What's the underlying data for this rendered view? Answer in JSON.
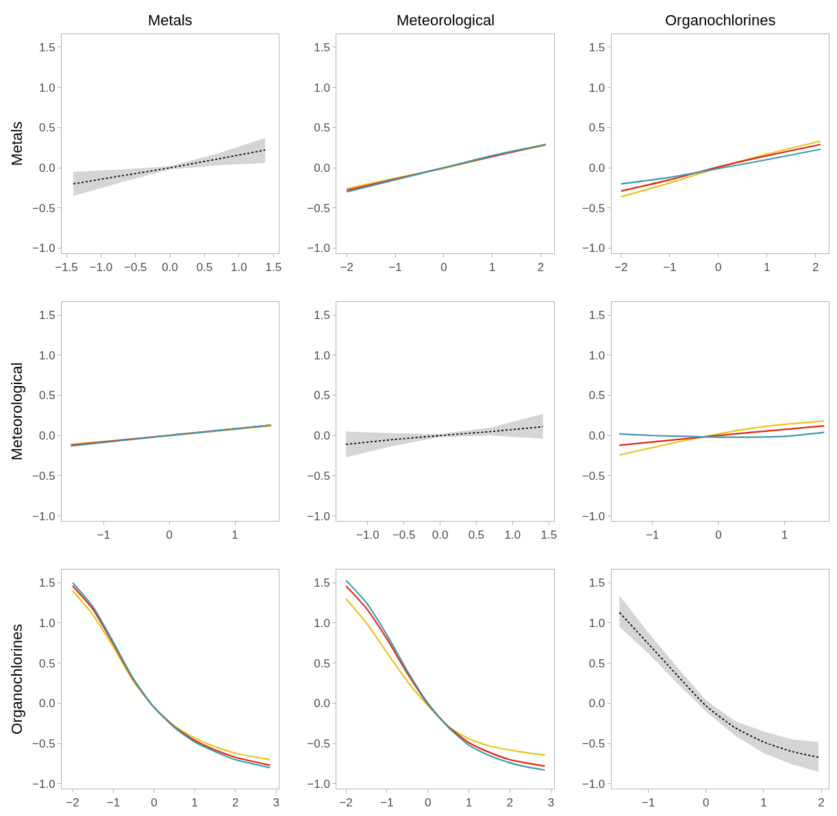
{
  "chart_data": [
    {
      "type": "line",
      "title": "Metals",
      "ylabel": "Metals",
      "xlim": [
        -1.57,
        1.58
      ],
      "xticks": [
        {
          "value": -1.5,
          "label": "−1.5"
        },
        {
          "value": -1,
          "label": "−1.0"
        },
        {
          "value": -0.5,
          "label": "−0.5"
        },
        {
          "value": 0,
          "label": "0.0"
        },
        {
          "value": 0.5,
          "label": "0.5"
        },
        {
          "value": 1,
          "label": "1.0"
        },
        {
          "value": 1.5,
          "label": "1.5"
        }
      ],
      "ylim": [
        -1.06,
        1.66
      ],
      "yticks": [
        {
          "value": -1,
          "label": "−1.0"
        },
        {
          "value": -0.5,
          "label": "−0.5"
        },
        {
          "value": 0,
          "label": "0.0"
        },
        {
          "value": 0.5,
          "label": "0.5"
        },
        {
          "value": 1,
          "label": "1.0"
        },
        {
          "value": 1.5,
          "label": "1.5"
        }
      ],
      "series": [
        {
          "color": "#000000",
          "line_style": "dotted",
          "x": [
            -1.4,
            -0.7,
            0,
            0.7,
            1.38
          ],
          "values": [
            -0.2,
            -0.1,
            0,
            0.11,
            0.22
          ],
          "lower": [
            -0.35,
            -0.18,
            -0.02,
            0.03,
            0.06
          ],
          "upper": [
            -0.05,
            -0.02,
            0.02,
            0.18,
            0.37
          ]
        }
      ]
    },
    {
      "type": "line",
      "title": "Meteorological",
      "xlim": [
        -2.21,
        2.27
      ],
      "xticks": [
        {
          "value": -2,
          "label": "−2"
        },
        {
          "value": -1,
          "label": "−1"
        },
        0,
        1,
        2
      ],
      "ylim": [
        -1.06,
        1.66
      ],
      "yticks": [
        {
          "value": -1,
          "label": "−1.0"
        },
        {
          "value": -0.5,
          "label": "−0.5"
        },
        {
          "value": 0,
          "label": "0.0"
        },
        {
          "value": 0.5,
          "label": "0.5"
        },
        {
          "value": 1,
          "label": "1.0"
        },
        {
          "value": 1.5,
          "label": "1.5"
        }
      ],
      "series": [
        {
          "color": "#e8c51e",
          "x": [
            -2,
            -1,
            0,
            1,
            2.1
          ],
          "values": [
            -0.26,
            -0.13,
            -0.01,
            0.14,
            0.28
          ]
        },
        {
          "color": "#e3250f",
          "x": [
            -2,
            -1,
            0,
            1,
            2.1
          ],
          "values": [
            -0.28,
            -0.14,
            0,
            0.14,
            0.29
          ]
        },
        {
          "color": "#3a9ab2",
          "x": [
            -2,
            -1,
            0,
            1,
            2.1
          ],
          "values": [
            -0.3,
            -0.15,
            0,
            0.15,
            0.29
          ]
        }
      ]
    },
    {
      "type": "line",
      "title": "Organochlorines",
      "xlim": [
        -2.2,
        2.27
      ],
      "xticks": [
        {
          "value": -2,
          "label": "−2"
        },
        {
          "value": -1,
          "label": "−1"
        },
        0,
        1,
        2
      ],
      "ylim": [
        -1.06,
        1.66
      ],
      "yticks": [
        {
          "value": -1,
          "label": "−1.0"
        },
        {
          "value": -0.5,
          "label": "−0.5"
        },
        {
          "value": 0,
          "label": "0.0"
        },
        {
          "value": 0.5,
          "label": "0.5"
        },
        {
          "value": 1,
          "label": "1.0"
        },
        {
          "value": 1.5,
          "label": "1.5"
        }
      ],
      "series": [
        {
          "color": "#e8c51e",
          "x": [
            -2,
            -1,
            0,
            1,
            2.1
          ],
          "values": [
            -0.36,
            -0.19,
            0,
            0.17,
            0.33
          ]
        },
        {
          "color": "#e3250f",
          "x": [
            -2,
            -1,
            0,
            1,
            2.1
          ],
          "values": [
            -0.29,
            -0.15,
            0.01,
            0.15,
            0.29
          ]
        },
        {
          "color": "#3a9ab2",
          "x": [
            -2,
            -1,
            0,
            1,
            2.1
          ],
          "values": [
            -0.2,
            -0.12,
            -0.01,
            0.1,
            0.23
          ]
        }
      ]
    },
    {
      "type": "line",
      "ylabel": "Meteorological",
      "xlim": [
        -1.64,
        1.67
      ],
      "xticks": [
        {
          "value": -1,
          "label": "−1"
        },
        0,
        1
      ],
      "ylim": [
        -1.06,
        1.66
      ],
      "yticks": [
        {
          "value": -1,
          "label": "−1.0"
        },
        {
          "value": -0.5,
          "label": "−0.5"
        },
        {
          "value": 0,
          "label": "0.0"
        },
        {
          "value": 0.5,
          "label": "0.5"
        },
        {
          "value": 1,
          "label": "1.0"
        },
        {
          "value": 1.5,
          "label": "1.5"
        }
      ],
      "series": [
        {
          "color": "#e8c51e",
          "x": [
            -1.5,
            0,
            1.55
          ],
          "values": [
            -0.11,
            0,
            0.12
          ]
        },
        {
          "color": "#e3250f",
          "x": [
            -1.5,
            1.55
          ],
          "values": [
            -0.12,
            0.13
          ]
        },
        {
          "color": "#3a9ab2",
          "x": [
            -1.5,
            0,
            1.55
          ],
          "values": [
            -0.13,
            0,
            0.13
          ]
        }
      ]
    },
    {
      "type": "line",
      "xlim": [
        -1.43,
        1.57
      ],
      "xticks": [
        {
          "value": -1,
          "label": "−1.0"
        },
        {
          "value": -0.5,
          "label": "−0.5"
        },
        {
          "value": 0,
          "label": "0.0"
        },
        {
          "value": 0.5,
          "label": "0.5"
        },
        {
          "value": 1,
          "label": "1.0"
        },
        {
          "value": 1.5,
          "label": "1.5"
        }
      ],
      "ylim": [
        -1.06,
        1.66
      ],
      "yticks": [
        {
          "value": -1,
          "label": "−1.0"
        },
        {
          "value": -0.5,
          "label": "−0.5"
        },
        {
          "value": 0,
          "label": "0.0"
        },
        {
          "value": 0.5,
          "label": "0.5"
        },
        {
          "value": 1,
          "label": "1.0"
        },
        {
          "value": 1.5,
          "label": "1.5"
        }
      ],
      "series": [
        {
          "color": "#000000",
          "line_style": "dotted",
          "x": [
            -1.3,
            -0.65,
            0,
            0.7,
            1.42
          ],
          "values": [
            -0.11,
            -0.05,
            0,
            0.05,
            0.11
          ],
          "lower": [
            -0.27,
            -0.13,
            -0.02,
            0,
            -0.04
          ],
          "upper": [
            0.05,
            0.03,
            0.02,
            0.1,
            0.27
          ]
        }
      ]
    },
    {
      "type": "line",
      "xlim": [
        -1.62,
        1.67
      ],
      "xticks": [
        {
          "value": -1,
          "label": "−1"
        },
        0,
        1
      ],
      "ylim": [
        -1.06,
        1.66
      ],
      "yticks": [
        {
          "value": -1,
          "label": "−1.0"
        },
        {
          "value": -0.5,
          "label": "−0.5"
        },
        {
          "value": 0,
          "label": "0.0"
        },
        {
          "value": 0.5,
          "label": "0.5"
        },
        {
          "value": 1,
          "label": "1.0"
        },
        {
          "value": 1.5,
          "label": "1.5"
        }
      ],
      "series": [
        {
          "color": "#e8c51e",
          "x": [
            -1.5,
            -1,
            -0.5,
            0,
            0.5,
            1,
            1.6
          ],
          "values": [
            -0.24,
            -0.15,
            -0.06,
            0.02,
            0.09,
            0.14,
            0.18
          ]
        },
        {
          "color": "#e3250f",
          "x": [
            -1.5,
            -0.5,
            0.5,
            1.6
          ],
          "values": [
            -0.12,
            -0.04,
            0.04,
            0.12
          ]
        },
        {
          "color": "#3a9ab2",
          "x": [
            -1.5,
            -1,
            -0.5,
            0,
            0.5,
            1,
            1.6
          ],
          "values": [
            0.02,
            0,
            -0.01,
            -0.02,
            -0.02,
            -0.01,
            0.04
          ]
        }
      ]
    },
    {
      "type": "line",
      "ylabel": "Organochlorines",
      "xlim": [
        -2.27,
        3.07
      ],
      "xticks": [
        {
          "value": -2,
          "label": "−2"
        },
        {
          "value": -1,
          "label": "−1"
        },
        0,
        1,
        2,
        3
      ],
      "ylim": [
        -1.06,
        1.66
      ],
      "yticks": [
        {
          "value": -1,
          "label": "−1.0"
        },
        {
          "value": -0.5,
          "label": "−0.5"
        },
        {
          "value": 0,
          "label": "0.0"
        },
        {
          "value": 0.5,
          "label": "0.5"
        },
        {
          "value": 1,
          "label": "1.0"
        },
        {
          "value": 1.5,
          "label": "1.5"
        }
      ],
      "series": [
        {
          "color": "#e8c51e",
          "x": [
            -2,
            -1.5,
            -1,
            -0.5,
            0,
            0.5,
            1,
            1.5,
            2,
            2.5,
            2.85
          ],
          "values": [
            1.4,
            1.1,
            0.7,
            0.27,
            -0.05,
            -0.28,
            -0.43,
            -0.54,
            -0.62,
            -0.67,
            -0.7
          ]
        },
        {
          "color": "#e3250f",
          "x": [
            -2,
            -1.5,
            -1,
            -0.5,
            0,
            0.5,
            1,
            1.5,
            2,
            2.5,
            2.85
          ],
          "values": [
            1.46,
            1.17,
            0.74,
            0.29,
            -0.05,
            -0.29,
            -0.46,
            -0.58,
            -0.67,
            -0.73,
            -0.77
          ]
        },
        {
          "color": "#3a9ab2",
          "x": [
            -2,
            -1.5,
            -1,
            -0.5,
            0,
            0.5,
            1,
            1.5,
            2,
            2.5,
            2.85
          ],
          "values": [
            1.5,
            1.2,
            0.76,
            0.3,
            -0.05,
            -0.3,
            -0.48,
            -0.6,
            -0.7,
            -0.76,
            -0.8
          ]
        }
      ]
    },
    {
      "type": "line",
      "xlim": [
        -2.23,
        3.07
      ],
      "xticks": [
        {
          "value": -2,
          "label": "−2"
        },
        {
          "value": -1,
          "label": "−1"
        },
        0,
        1,
        2,
        3
      ],
      "ylim": [
        -1.06,
        1.66
      ],
      "yticks": [
        {
          "value": -1,
          "label": "−1.0"
        },
        {
          "value": -0.5,
          "label": "−0.5"
        },
        {
          "value": 0,
          "label": "0.0"
        },
        {
          "value": 0.5,
          "label": "0.5"
        },
        {
          "value": 1,
          "label": "1.0"
        },
        {
          "value": 1.5,
          "label": "1.5"
        }
      ],
      "series": [
        {
          "color": "#e8c51e",
          "x": [
            -2,
            -1.5,
            -1,
            -0.5,
            0,
            0.5,
            1,
            1.5,
            2,
            2.5,
            2.85
          ],
          "values": [
            1.3,
            1.0,
            0.63,
            0.27,
            -0.03,
            -0.29,
            -0.44,
            -0.53,
            -0.58,
            -0.62,
            -0.64
          ]
        },
        {
          "color": "#e3250f",
          "x": [
            -2,
            -1.5,
            -1,
            -0.5,
            0,
            0.5,
            1,
            1.5,
            2,
            2.5,
            2.85
          ],
          "values": [
            1.46,
            1.18,
            0.8,
            0.37,
            -0.01,
            -0.29,
            -0.49,
            -0.61,
            -0.7,
            -0.75,
            -0.78
          ]
        },
        {
          "color": "#3a9ab2",
          "x": [
            -2,
            -1.5,
            -1,
            -0.5,
            0,
            0.5,
            1,
            1.5,
            2,
            2.5,
            2.85
          ],
          "values": [
            1.53,
            1.25,
            0.85,
            0.4,
            0,
            -0.3,
            -0.52,
            -0.65,
            -0.74,
            -0.8,
            -0.83
          ]
        }
      ]
    },
    {
      "type": "line",
      "xlim": [
        -1.64,
        2.13
      ],
      "xticks": [
        {
          "value": -1,
          "label": "−1"
        },
        0,
        1,
        2
      ],
      "ylim": [
        -1.06,
        1.66
      ],
      "yticks": [
        {
          "value": -1,
          "label": "−1.0"
        },
        {
          "value": -0.5,
          "label": "−0.5"
        },
        {
          "value": 0,
          "label": "0.0"
        },
        {
          "value": 0.5,
          "label": "0.5"
        },
        {
          "value": 1,
          "label": "1.0"
        },
        {
          "value": 1.5,
          "label": "1.5"
        }
      ],
      "series": [
        {
          "color": "#000000",
          "line_style": "dotted",
          "x": [
            -1.5,
            -1,
            -0.5,
            0,
            0.5,
            1,
            1.5,
            1.95
          ],
          "values": [
            1.13,
            0.74,
            0.35,
            -0.03,
            -0.3,
            -0.48,
            -0.6,
            -0.67
          ],
          "lower": [
            0.95,
            0.62,
            0.25,
            -0.1,
            -0.4,
            -0.62,
            -0.76,
            -0.85
          ],
          "upper": [
            1.34,
            0.88,
            0.45,
            0.04,
            -0.22,
            -0.35,
            -0.45,
            -0.48
          ]
        }
      ]
    }
  ]
}
